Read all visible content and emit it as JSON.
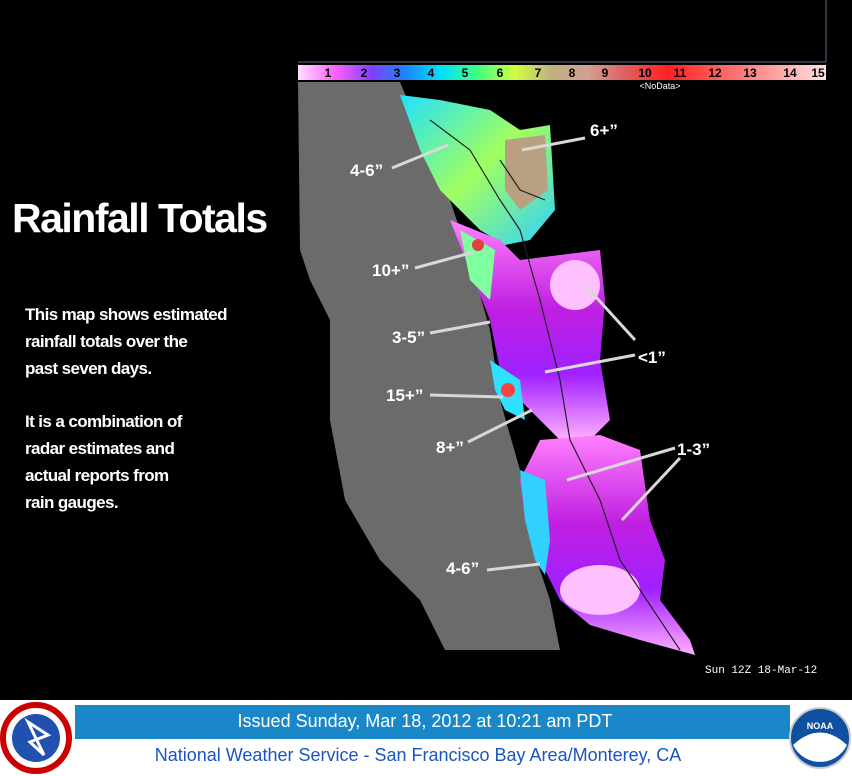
{
  "title": "Rainfall Totals",
  "description": [
    [
      "This map shows estimated",
      "rainfall totals over the",
      "past seven days."
    ],
    [
      "It is a combination of",
      "radar estimates and",
      "actual reports from",
      "rain gauges."
    ]
  ],
  "legend": {
    "labels": [
      "1",
      "2",
      "3",
      "4",
      "5",
      "6",
      "7",
      "8",
      "9",
      "10",
      "11",
      "12",
      "13",
      "14",
      "15"
    ],
    "nodata": "<NoData>"
  },
  "annotations": [
    "6+”",
    "4-6”",
    "10+”",
    "3-5”",
    "<1”",
    "15+”",
    "8+”",
    "1-3”",
    "4-6”"
  ],
  "timestamp": "Sun 12Z 18-Mar-12",
  "footer": {
    "issued": "Issued Sunday, Mar 18, 2012 at 10:21 am PDT",
    "office": "National Weather Service - San Francisco Bay Area/Monterey, CA",
    "noaa": "NOAA"
  }
}
